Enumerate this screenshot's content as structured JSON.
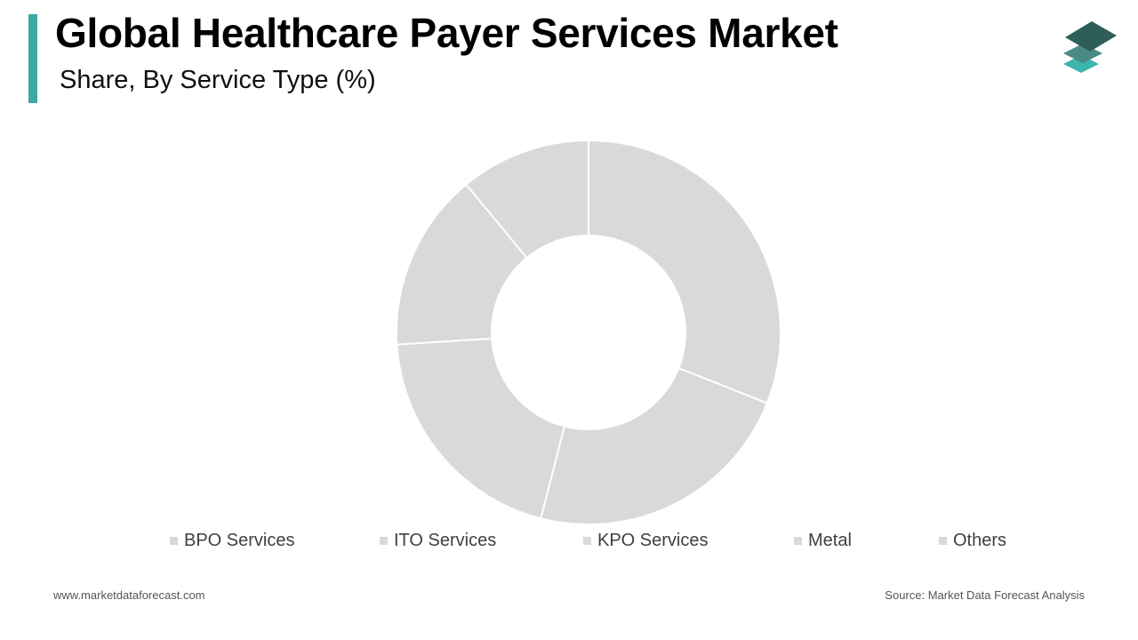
{
  "header": {
    "title": "Global Healthcare Payer Services Market",
    "subtitle": "Share, By Service Type (%)"
  },
  "logo": {
    "icon": "stacked-layers-logo-icon"
  },
  "colors": {
    "accent": "#3fa7a1",
    "slice": "#d9d9d9",
    "slice_border": "#ffffff",
    "logo_top": "#2f5e58",
    "logo_mid": "#4a8a84",
    "logo_bottom": "#3fb3ad"
  },
  "chart_data": {
    "type": "pie",
    "donut": true,
    "labels": [
      "BPO Services",
      "ITO Services",
      "KPO Services",
      "Metal",
      "Others"
    ],
    "values": [
      31,
      23,
      20,
      15,
      11
    ],
    "legend_position": "bottom"
  },
  "footer": {
    "website": "www.marketdataforecast.com",
    "source": "Source: Market Data Forecast Analysis"
  }
}
